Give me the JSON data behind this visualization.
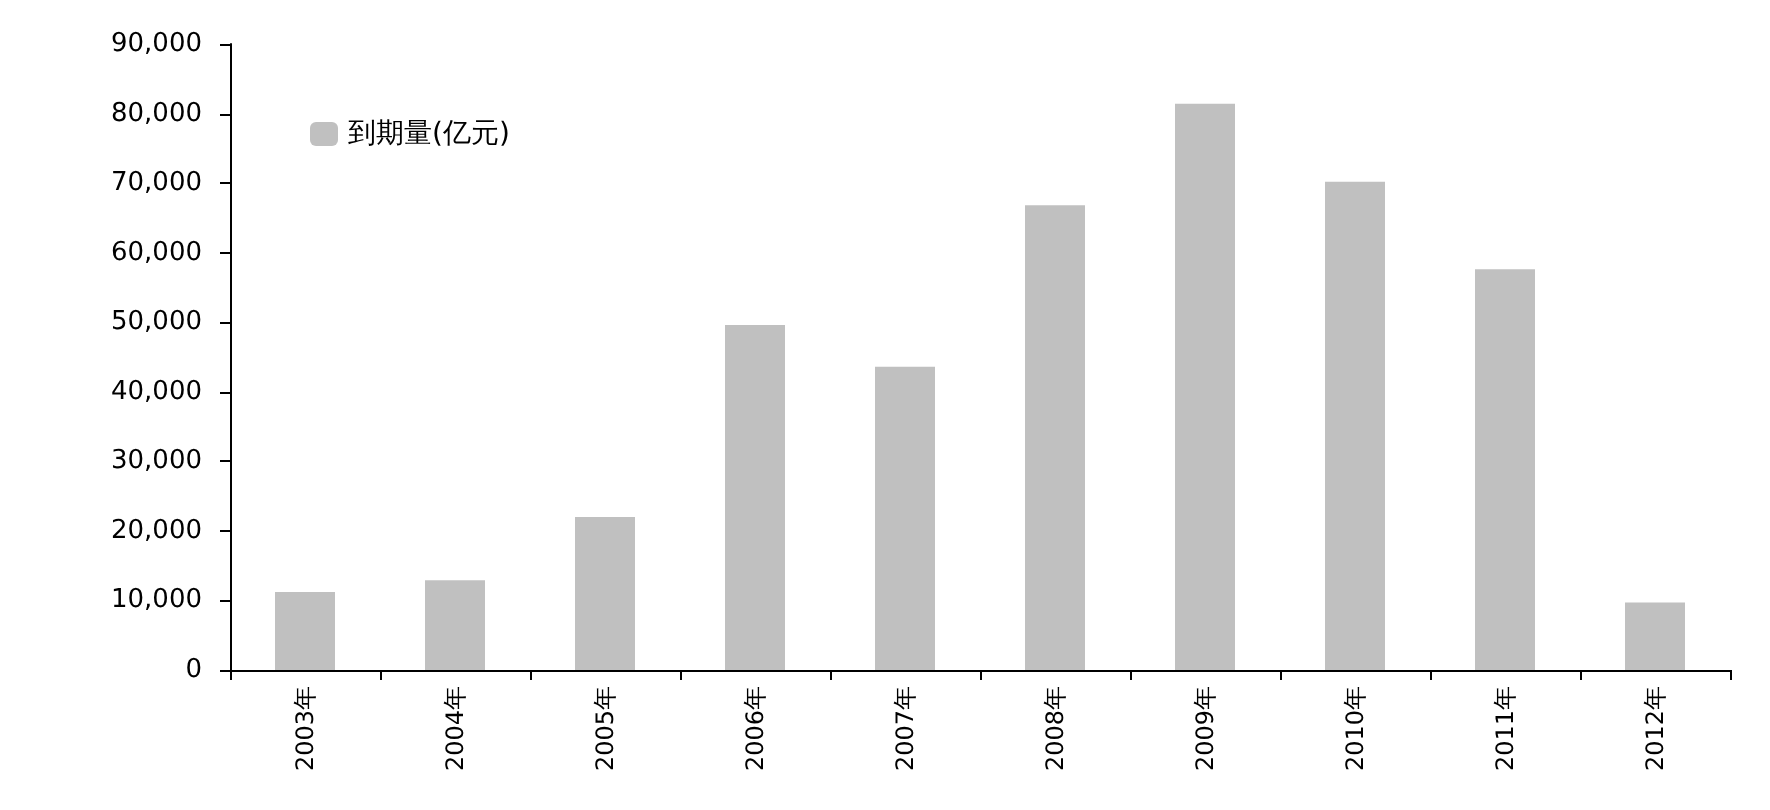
{
  "chart_data": {
    "type": "bar",
    "categories": [
      "2003年",
      "2004年",
      "2005年",
      "2006年",
      "2007年",
      "2008年",
      "2009年",
      "2010年",
      "2011年",
      "2012年"
    ],
    "series": [
      {
        "name": "到期量(亿元)",
        "color": "#c0c0c0",
        "values": [
          11200,
          12900,
          22000,
          49600,
          43600,
          66800,
          81400,
          70200,
          57600,
          9700
        ]
      }
    ],
    "ylim": [
      0,
      90000
    ],
    "yticks": [
      0,
      {
        "value": 10000,
        "label": "10,000"
      },
      {
        "value": 20000,
        "label": "20,000"
      },
      {
        "value": 30000,
        "label": "30,000"
      },
      {
        "value": 40000,
        "label": "40,000"
      },
      {
        "value": 50000,
        "label": "50,000"
      },
      {
        "value": 60000,
        "label": "60,000"
      },
      {
        "value": 70000,
        "label": "70,000"
      },
      {
        "value": 80000,
        "label": "80,000"
      },
      {
        "value": 90000,
        "label": "90,000"
      }
    ],
    "legend": "top left",
    "grid": false
  }
}
